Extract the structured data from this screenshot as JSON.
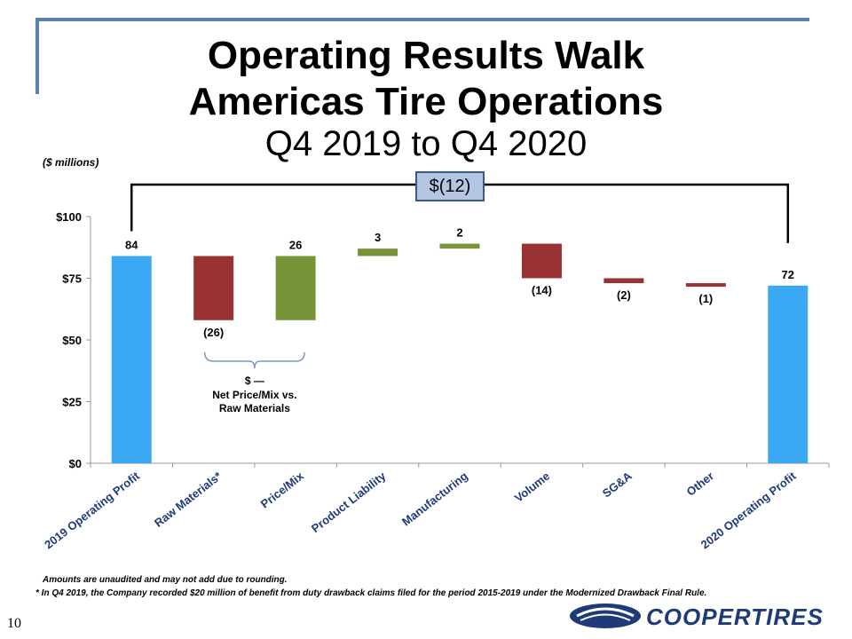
{
  "header": {
    "title_line1": "Operating Results Walk",
    "title_line2": "Americas Tire Operations",
    "subtitle": "Q4 2019 to Q4 2020",
    "units": "($ millions)"
  },
  "bracket_label": "$(12)",
  "colors": {
    "total": "#3aa8f2",
    "negative": "#993333",
    "positive": "#779438",
    "accent": "#5b7fb5"
  },
  "chart_data": {
    "type": "bar",
    "subtype": "waterfall",
    "categories": [
      "2019 Operating Profit",
      "Raw Materials*",
      "Price/Mix",
      "Product Liability",
      "Manufacturing",
      "Volume",
      "SG&A",
      "Other",
      "2020 Operating Profit"
    ],
    "values": [
      84,
      -26,
      26,
      3,
      2,
      -14,
      -2,
      -1,
      72
    ],
    "kinds": [
      "total",
      "negative",
      "positive",
      "positive",
      "positive",
      "negative",
      "negative",
      "negative",
      "total"
    ],
    "data_labels": [
      "84",
      "(26)",
      "26",
      "3",
      "2",
      "(14)",
      "(2)",
      "(1)",
      "72"
    ],
    "yticks": [
      "$0",
      "$25",
      "$50",
      "$75",
      "$100"
    ],
    "ytick_values": [
      0,
      25,
      50,
      75,
      100
    ],
    "ylim": [
      0,
      100
    ],
    "annotation": {
      "line1": "$ —",
      "line2": "Net Price/Mix vs.",
      "line3": "Raw Materials"
    }
  },
  "footnotes": {
    "note1": "Amounts are unaudited and may not add due to rounding.",
    "note2": "* In Q4 2019, the Company recorded $20 million of benefit from duty drawback claims filed for the period 2015-2019 under the Modernized Drawback Final Rule."
  },
  "page_number": "10",
  "logo_text": "COOPERTIRES"
}
